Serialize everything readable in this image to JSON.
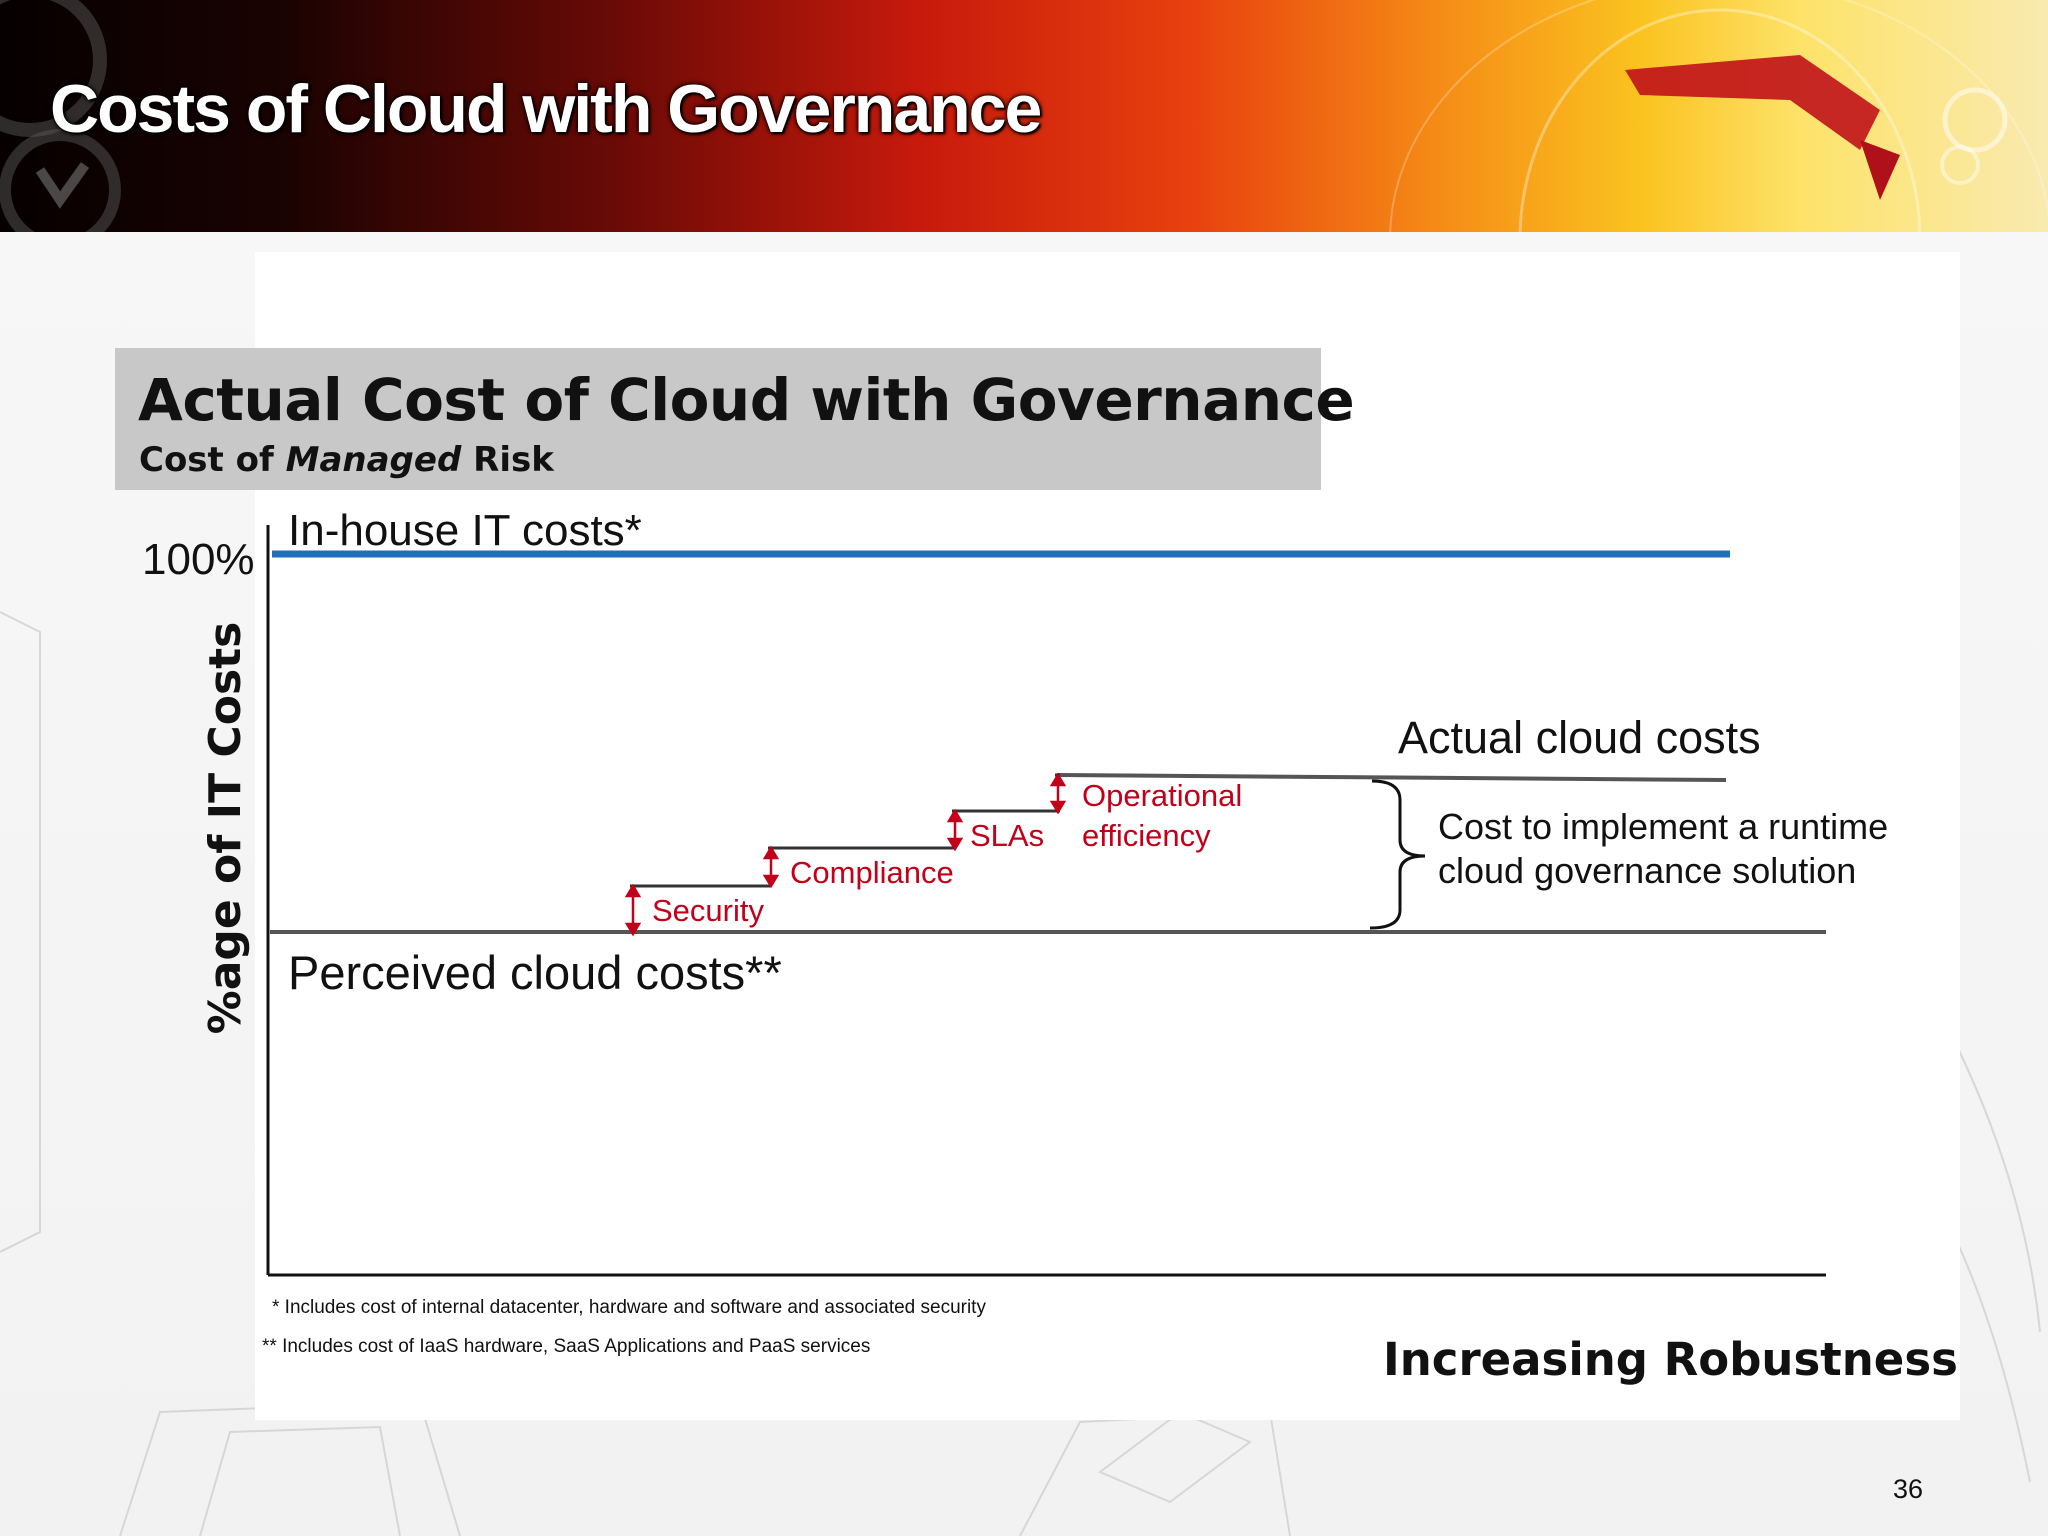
{
  "slide": {
    "title": "Costs of Cloud with Governance",
    "page_number": "36"
  },
  "header": {
    "title": "Actual Cost of Cloud with Governance",
    "subtitle_prefix": "Cost of ",
    "subtitle_emphasis": "Managed",
    "subtitle_suffix": " Risk"
  },
  "diagram": {
    "y_axis_label": "%age of IT Costs",
    "y_max_label": "100%",
    "x_axis_label": "Increasing Robustness",
    "lines": {
      "inhouse": "In-house IT costs*",
      "actual": "Actual cloud costs",
      "perceived": "Perceived cloud costs**"
    },
    "bracket_label_line1": "Cost to implement a runtime",
    "bracket_label_line2": "cloud governance solution",
    "steps": {
      "security": "Security",
      "compliance": "Compliance",
      "slas": "SLAs",
      "operational_line1": "Operational",
      "operational_line2": "efficiency"
    },
    "footnotes": [
      "* Includes cost of internal datacenter, hardware and software and associated security",
      "** Includes cost of IaaS hardware, SaaS Applications and PaaS services"
    ],
    "colors": {
      "inhouse_line": "#1f6fba",
      "step_labels": "#c3001a",
      "axis": "#111111"
    }
  }
}
